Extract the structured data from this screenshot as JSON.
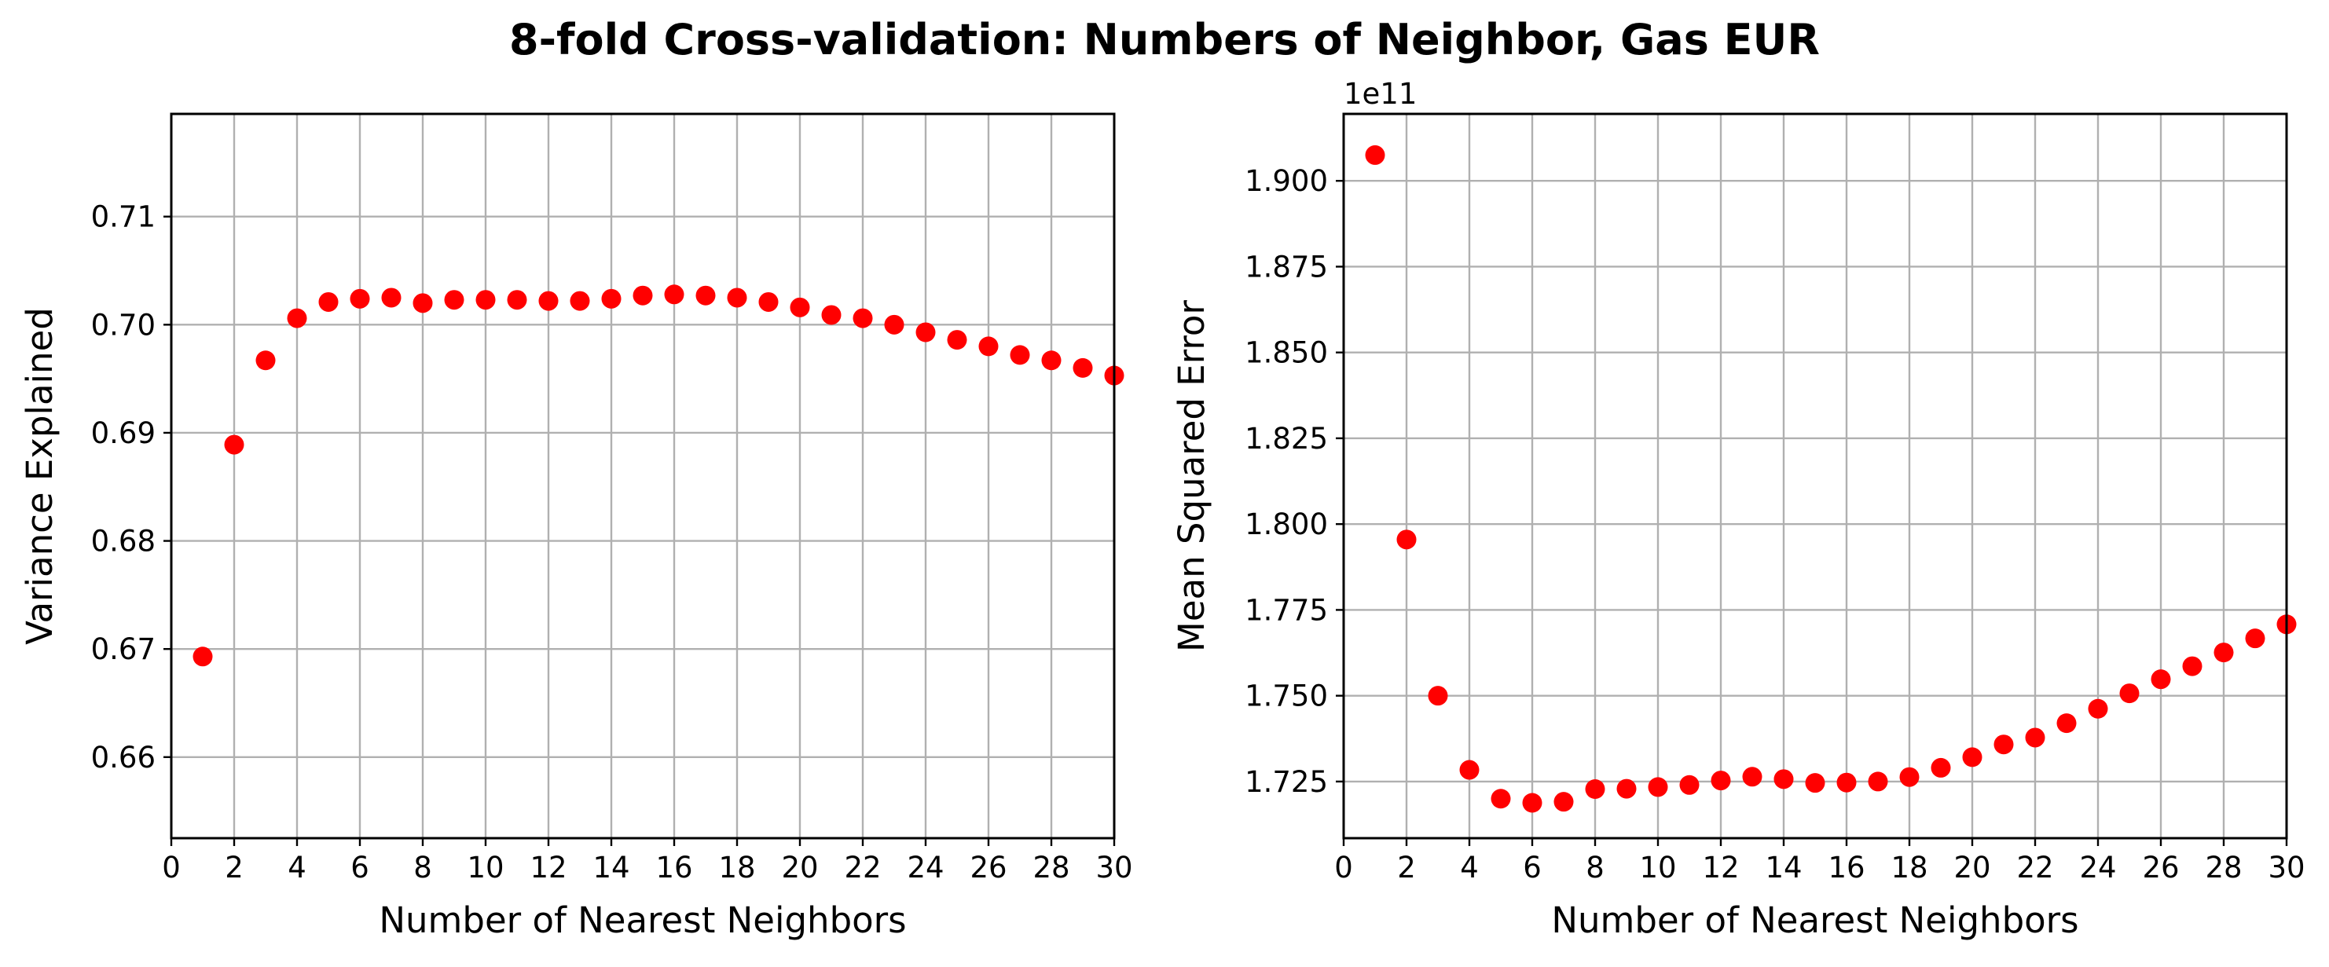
{
  "figure": {
    "title": "8-fold Cross-validation: Numbers of Neighbor, Gas EUR"
  },
  "chart_data": [
    {
      "type": "scatter",
      "xlabel": "Number of Nearest Neighbors",
      "ylabel": "Variance Explained",
      "xlim": [
        0,
        30
      ],
      "ylim": [
        0.6525,
        0.7195
      ],
      "xticks": [
        "0",
        "2",
        "4",
        "6",
        "8",
        "10",
        "12",
        "14",
        "16",
        "18",
        "20",
        "22",
        "24",
        "26",
        "28",
        "30"
      ],
      "yticks": [
        "0.66",
        "0.67",
        "0.68",
        "0.69",
        "0.70",
        "0.71"
      ],
      "ytick_values": [
        0.66,
        0.67,
        0.68,
        0.69,
        0.7,
        0.71
      ],
      "y_offset_text": "",
      "grid": true,
      "marker_color": "#ff0000",
      "series": [
        {
          "x": [
            1,
            2,
            3,
            4,
            5,
            6,
            7,
            8,
            9,
            10,
            11,
            12,
            13,
            14,
            15,
            16,
            17,
            18,
            19,
            20,
            21,
            22,
            23,
            24,
            25,
            26,
            27,
            28,
            29,
            30
          ],
          "y": [
            0.6693,
            0.6889,
            0.6967,
            0.7006,
            0.7021,
            0.7024,
            0.7025,
            0.702,
            0.7023,
            0.7023,
            0.7023,
            0.7022,
            0.7022,
            0.7024,
            0.7027,
            0.7028,
            0.7027,
            0.7025,
            0.7021,
            0.7016,
            0.7009,
            0.7006,
            0.7,
            0.6993,
            0.6986,
            0.698,
            0.6972,
            0.6967,
            0.696,
            0.6953
          ]
        }
      ]
    },
    {
      "type": "scatter",
      "xlabel": "Number of Nearest Neighbors",
      "ylabel": "Mean Squared Error",
      "xlim": [
        0,
        30
      ],
      "ylim": [
        1.7085,
        1.9195
      ],
      "xticks": [
        "0",
        "2",
        "4",
        "6",
        "8",
        "10",
        "12",
        "14",
        "16",
        "18",
        "20",
        "22",
        "24",
        "26",
        "28",
        "30"
      ],
      "yticks": [
        "1.725",
        "1.750",
        "1.775",
        "1.800",
        "1.825",
        "1.850",
        "1.875",
        "1.900"
      ],
      "ytick_values": [
        1.725,
        1.75,
        1.775,
        1.8,
        1.825,
        1.85,
        1.875,
        1.9
      ],
      "y_offset_text": "1e11",
      "grid": true,
      "marker_color": "#ff0000",
      "series": [
        {
          "x": [
            1,
            2,
            3,
            4,
            5,
            6,
            7,
            8,
            9,
            10,
            11,
            12,
            13,
            14,
            15,
            16,
            17,
            18,
            19,
            20,
            21,
            22,
            23,
            24,
            25,
            26,
            27,
            28,
            29,
            30
          ],
          "y": [
            1.9075,
            1.7955,
            1.75,
            1.7284,
            1.72,
            1.7188,
            1.7191,
            1.7228,
            1.7229,
            1.7234,
            1.724,
            1.7253,
            1.7264,
            1.7257,
            1.7246,
            1.7247,
            1.725,
            1.7263,
            1.729,
            1.7321,
            1.7358,
            1.7378,
            1.742,
            1.7462,
            1.7507,
            1.7548,
            1.7586,
            1.7626,
            1.7667,
            1.7708
          ]
        }
      ]
    }
  ]
}
